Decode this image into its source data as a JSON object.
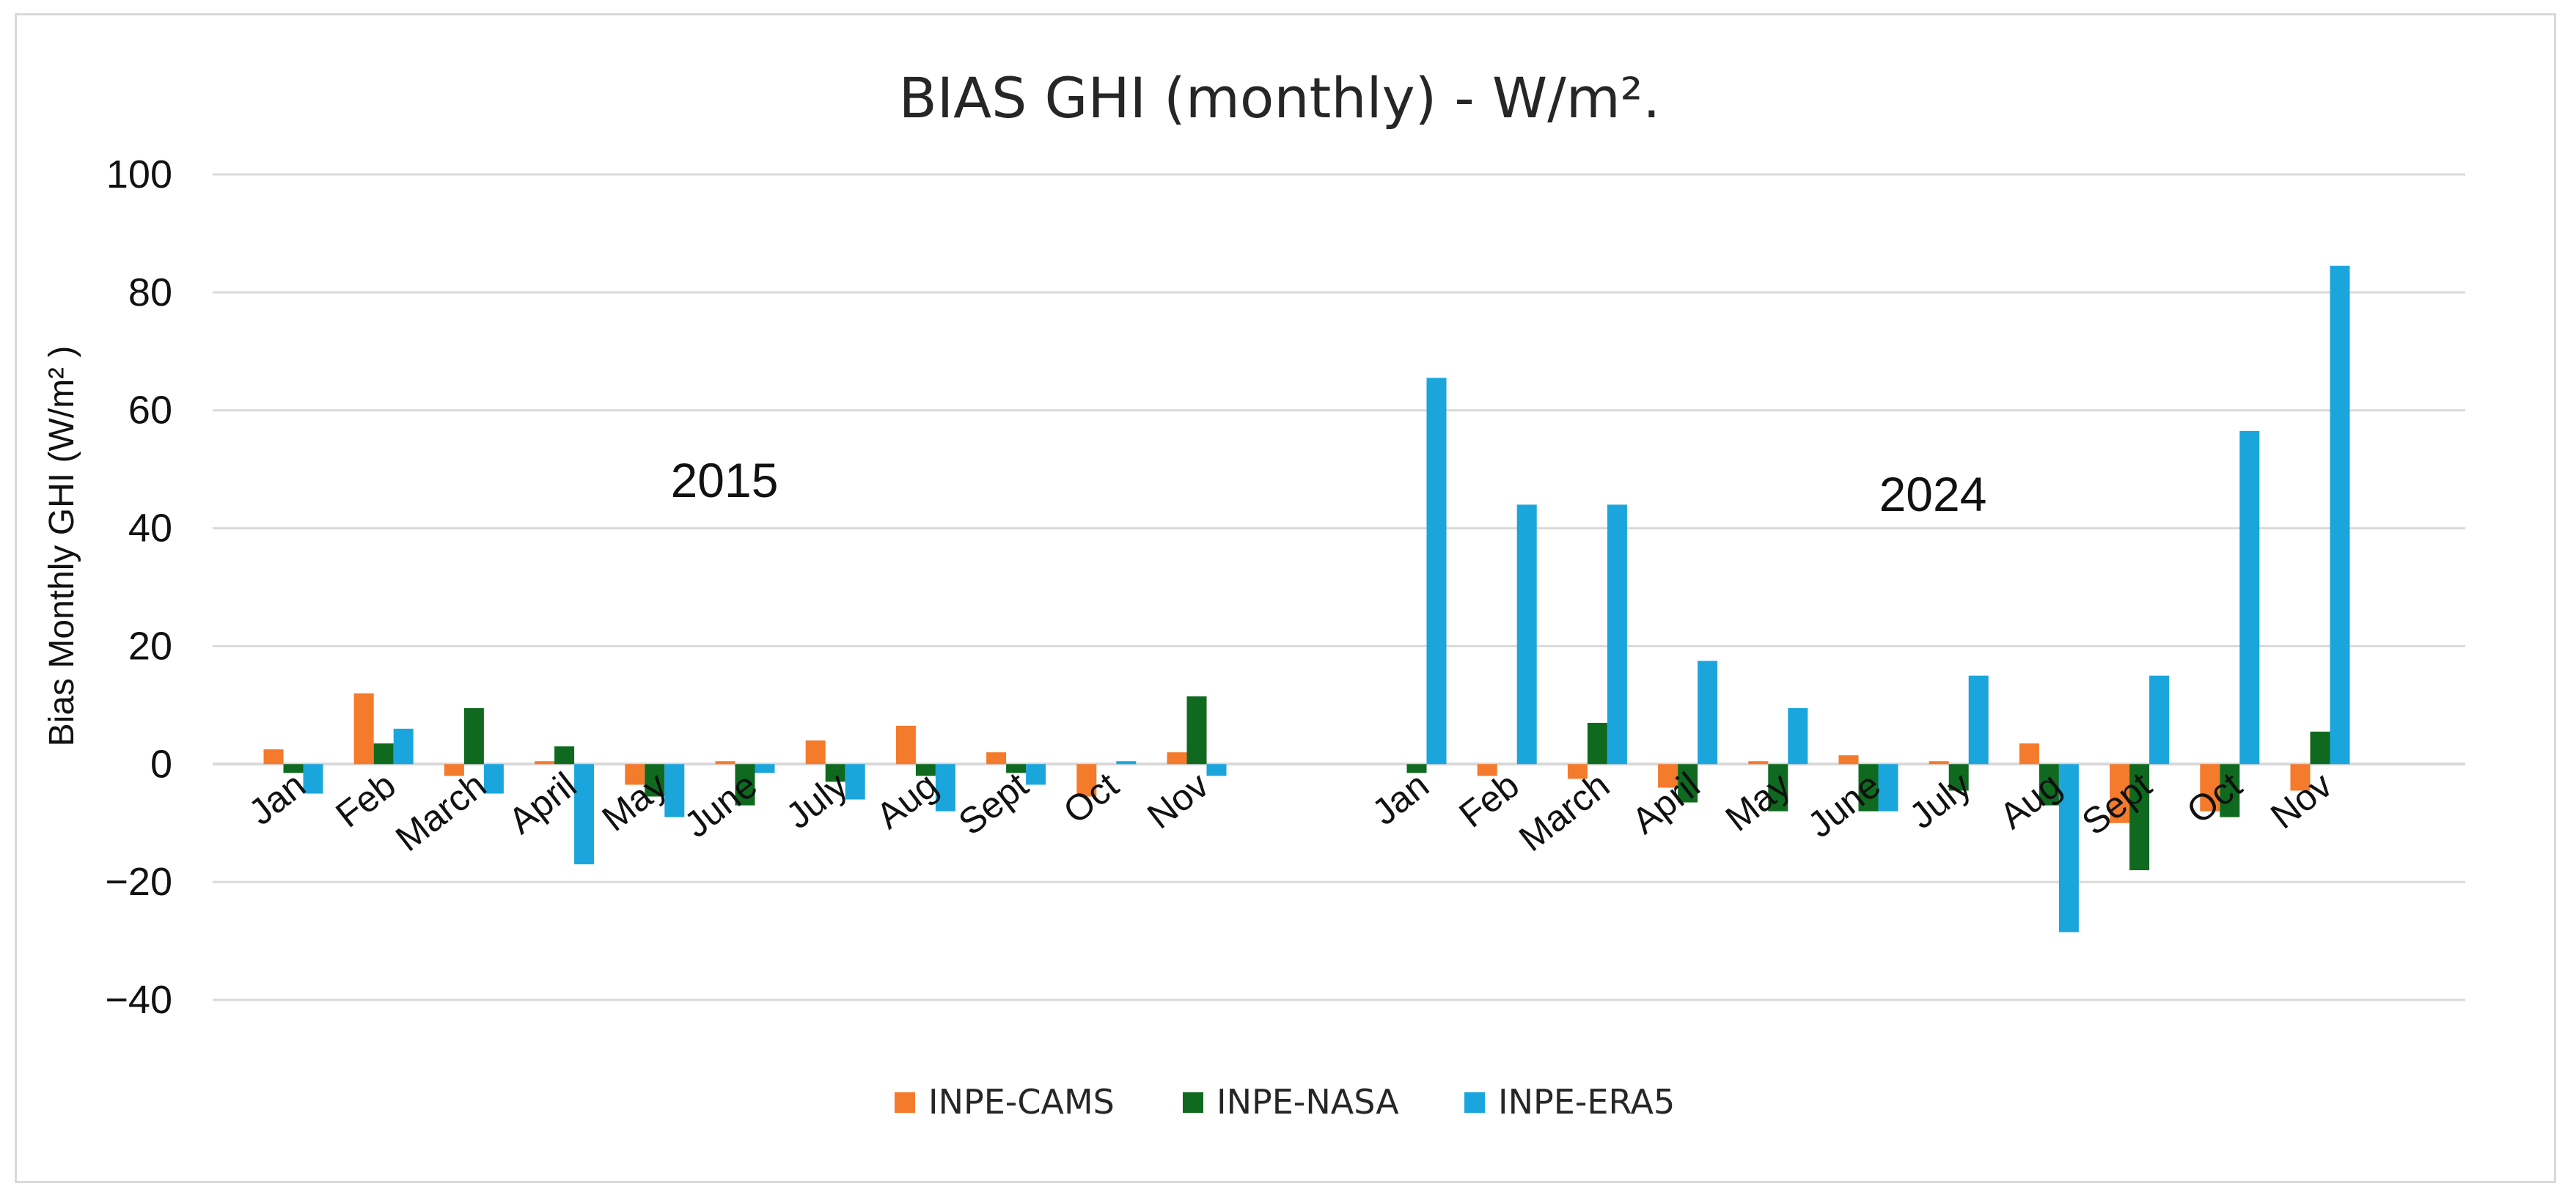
{
  "chart_data": {
    "type": "bar",
    "title": "BIAS GHI (monthly)  - W/m².",
    "ylabel": "Bias Monthly GHI (W/m² )",
    "xlabel": "",
    "ylim": [
      -40,
      100
    ],
    "yticks": [
      100,
      80,
      60,
      40,
      20,
      0,
      -20,
      -40
    ],
    "ytick_labels": [
      "100",
      "80",
      "60",
      "40",
      "20",
      "0",
      "−20",
      "−40"
    ],
    "grid": true,
    "legend_position": "bottom-center",
    "annotations": [
      "2015",
      "2024"
    ],
    "groups": [
      {
        "label": "2015",
        "categories": [
          "Jan",
          "Feb",
          "March",
          "April",
          "May",
          "June",
          "July",
          "Aug",
          "Sept",
          "Oct",
          "Nov"
        ],
        "series": [
          {
            "name": "INPE-CAMS",
            "values": [
              2.5,
              12,
              -2,
              0.5,
              -3.5,
              0.5,
              4,
              6.5,
              2,
              -5.5,
              2
            ]
          },
          {
            "name": "INPE-NASA",
            "values": [
              -1.5,
              3.5,
              9.5,
              3,
              -5.5,
              -7,
              -3,
              -2,
              -1.5,
              0,
              11.5
            ]
          },
          {
            "name": "INPE-ERA5",
            "values": [
              -5,
              6,
              -5,
              -17,
              -9,
              -1.5,
              -6,
              -8,
              -3.5,
              0.5,
              -2
            ]
          }
        ]
      },
      {
        "label": "2024",
        "categories": [
          "Jan",
          "Feb",
          "March",
          "April",
          "May",
          "June",
          "July",
          "Aug",
          "Sept",
          "Oct",
          "Nov"
        ],
        "series": [
          {
            "name": "INPE-CAMS",
            "values": [
              0,
              -2,
              -2.5,
              -4,
              0.5,
              1.5,
              0.5,
              3.5,
              -10,
              -8,
              -4.5
            ]
          },
          {
            "name": "INPE-NASA",
            "values": [
              -1.5,
              0,
              7,
              -6.5,
              -8,
              -8,
              -4.5,
              -7,
              -18,
              -9,
              5.5
            ]
          },
          {
            "name": "INPE-ERA5",
            "values": [
              65.5,
              44,
              44,
              17.5,
              9.5,
              -8,
              15,
              -28.5,
              15,
              56.5,
              84.5
            ]
          }
        ]
      }
    ],
    "legend": [
      {
        "name": "INPE-CAMS",
        "color": "#f47a2c"
      },
      {
        "name": "INPE-NASA",
        "color": "#0f6a1f"
      },
      {
        "name": "INPE-ERA5",
        "color": "#1aa6dd"
      }
    ]
  }
}
